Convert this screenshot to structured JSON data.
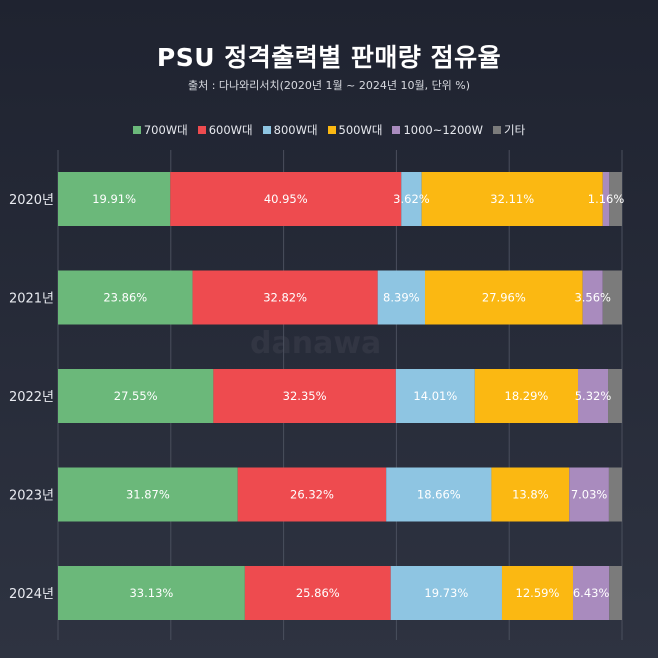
{
  "title": "PSU 정격출력별 판매량 점유율",
  "subtitle": "출처 : 다나와리서치(2020년 1월 ~ 2024년 10월, 단위 %)",
  "watermark": "danawa",
  "legend": [
    {
      "label": "700W대",
      "color": "#6bb87a"
    },
    {
      "label": "600W대",
      "color": "#ee4b4f"
    },
    {
      "label": "800W대",
      "color": "#8ec5e2"
    },
    {
      "label": "500W대",
      "color": "#fbb812"
    },
    {
      "label": "1000~1200W",
      "color": "#a98bbe"
    },
    {
      "label": "기타",
      "color": "#7b7b7b"
    }
  ],
  "chart_data": {
    "type": "bar",
    "stacked": true,
    "orientation": "horizontal",
    "title": "PSU 정격출력별 판매량 점유율",
    "categories": [
      "2020년",
      "2021년",
      "2022년",
      "2023년",
      "2024년"
    ],
    "xlim": [
      0,
      100
    ],
    "grid": true,
    "legend_position": "top",
    "series": [
      {
        "name": "700W대",
        "color": "#6bb87a",
        "values": [
          19.91,
          23.86,
          27.55,
          31.87,
          33.13
        ],
        "labels": [
          "19.91%",
          "23.86%",
          "27.55%",
          "31.87%",
          "33.13%"
        ]
      },
      {
        "name": "600W대",
        "color": "#ee4b4f",
        "values": [
          40.95,
          32.82,
          32.35,
          26.32,
          25.86
        ],
        "labels": [
          "40.95%",
          "32.82%",
          "32.35%",
          "26.32%",
          "25.86%"
        ]
      },
      {
        "name": "800W대",
        "color": "#8ec5e2",
        "values": [
          3.62,
          8.39,
          14.01,
          18.66,
          19.73
        ],
        "labels": [
          "3.62%",
          "8.39%",
          "14.01%",
          "18.66%",
          "19.73%"
        ]
      },
      {
        "name": "500W대",
        "color": "#fbb812",
        "values": [
          32.11,
          27.96,
          18.29,
          13.8,
          12.59
        ],
        "labels": [
          "32.11%",
          "27.96%",
          "18.29%",
          "13.8%",
          "12.59%"
        ]
      },
      {
        "name": "1000~1200W",
        "color": "#a98bbe",
        "values": [
          1.16,
          3.56,
          5.32,
          7.03,
          6.43
        ],
        "labels": [
          "1.16%",
          "3.56%",
          "5.32%",
          "7.03%",
          "6.43%"
        ]
      },
      {
        "name": "기타",
        "color": "#7b7b7b",
        "values": [
          2.25,
          3.41,
          2.48,
          2.32,
          2.26
        ],
        "labels": [
          "",
          "",
          "",
          "",
          ""
        ]
      }
    ]
  }
}
